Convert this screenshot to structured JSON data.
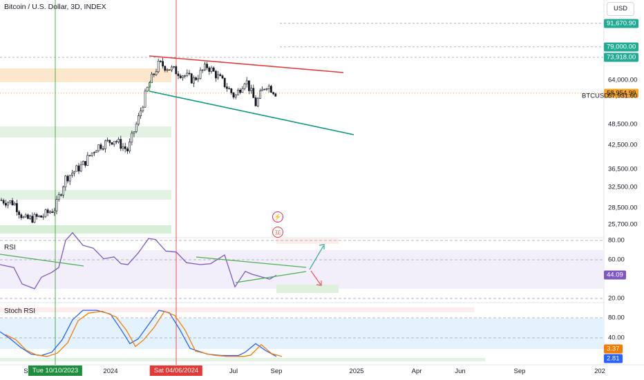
{
  "title": "Bitcoin / U.S. Dollar, 3D, INDEX",
  "currency_button": "USD",
  "symbol": "BTCUSD",
  "symbol_price": "57,931.60",
  "panes": {
    "rsi_label": "RSI",
    "stoch_label": "Stoch RSI"
  },
  "price_axis": [
    {
      "label": "64,000.00",
      "v": 64000
    },
    {
      "label": "48,500.00",
      "v": 48500
    },
    {
      "label": "42,500.00",
      "v": 42500
    },
    {
      "label": "36,500.00",
      "v": 36500
    },
    {
      "label": "32,500.00",
      "v": 32500
    },
    {
      "label": "28,500.00",
      "v": 28500
    },
    {
      "label": "25,700.00",
      "v": 25700
    }
  ],
  "price_tags": [
    {
      "label": "91,670.90",
      "v": 91670.9,
      "color": "#22ab94"
    },
    {
      "label": "79,000.00",
      "v": 79000,
      "color": "#22ab94"
    },
    {
      "label": "73,918.00",
      "v": 73918,
      "color": "#22ab94"
    },
    {
      "label": "58,954.99",
      "v": 58954.99,
      "color": "#f5a623",
      "text_color": "#131722"
    }
  ],
  "rsi_axis": [
    {
      "label": "80.00",
      "v": 80
    },
    {
      "label": "60.00",
      "v": 60
    },
    {
      "label": "20.00",
      "v": 20
    }
  ],
  "rsi_tag": {
    "label": "44.09",
    "v": 44.09,
    "color": "#7e57c2"
  },
  "stoch_axis": [
    {
      "label": "80.00",
      "v": 80
    },
    {
      "label": "40.00",
      "v": 40
    }
  ],
  "stoch_tags": [
    {
      "label": "3.37",
      "v": 3.37,
      "color": "#f57c00"
    },
    {
      "label": "2.81",
      "v": 2.81,
      "color": "#2962ff"
    }
  ],
  "time_axis": [
    {
      "label": "Se",
      "pos": "sep23"
    },
    {
      "label": "2024",
      "pos": "2024"
    },
    {
      "label": "Jul",
      "pos": "jul"
    },
    {
      "label": "Sep",
      "pos": "sep"
    },
    {
      "label": "2025",
      "pos": "2025"
    },
    {
      "label": "Apr",
      "pos": "apr"
    },
    {
      "label": "Jun",
      "pos": "jun"
    },
    {
      "label": "Sep",
      "pos": "sep25"
    },
    {
      "label": "202",
      "pos": "2026"
    }
  ],
  "time_tags": [
    {
      "label": "Tue 10/10/2023",
      "color": "#1e8e3e",
      "pos": "green_line"
    },
    {
      "label": "Sat 04/06/2024",
      "color": "#e53935",
      "pos": "red_line"
    }
  ],
  "colors": {
    "up": "#131722",
    "down": "#131722",
    "resistance": "#e53935",
    "support": "#089981",
    "rsi": "#7e57c2",
    "stoch_k": "#2962ff",
    "stoch_d": "#f57c00",
    "zone_orange": "#fde7cc",
    "zone_green": "#e3f3e3"
  },
  "markers": [
    {
      "name": "flash-icon",
      "symbol": "⚡",
      "color": "#e91e63"
    },
    {
      "name": "us-flag-icon",
      "symbol": "🇺",
      "color": "#e53935"
    }
  ]
}
